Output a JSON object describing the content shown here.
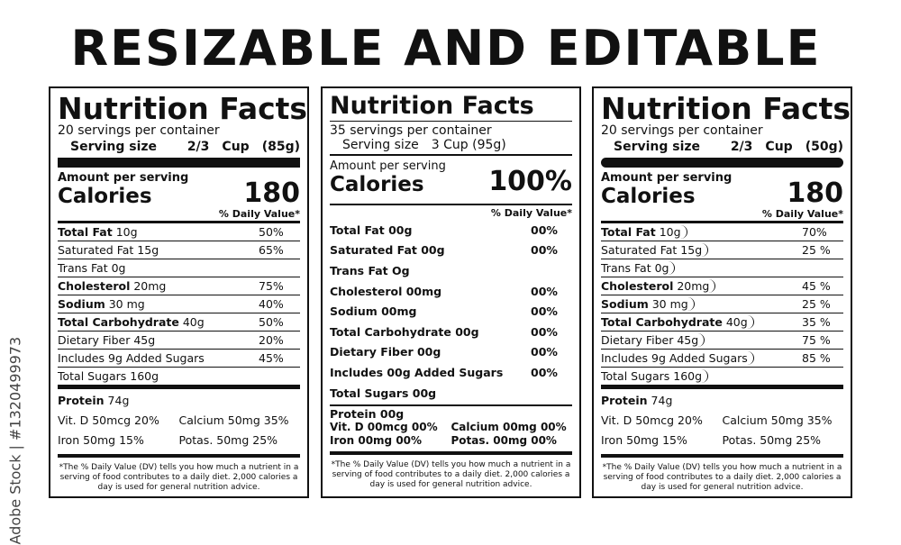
{
  "header": {
    "title": "RESIZABLE AND EDITABLE"
  },
  "watermark": "Adobe Stock | #1320499973",
  "labels": [
    {
      "heading": "Nutrition Facts",
      "servings": "20 servings per container",
      "serving_size": {
        "label": "Serving size",
        "amount": "2/3",
        "unit": "Cup",
        "weight": "(85g)"
      },
      "calories_intro": "Amount per serving",
      "calories_label": "Calories",
      "calories": "180",
      "dv_header": "% Daily Value*",
      "rows": [
        {
          "name": "Total Fat",
          "amount": "10g",
          "dv": "50%",
          "bold": true
        },
        {
          "name": "Saturated Fat 15g",
          "dv": "65%"
        },
        {
          "name": "Trans Fat 0g"
        },
        {
          "name": "Cholesterol",
          "amount": "20mg",
          "dv": "75%",
          "bold": true
        },
        {
          "name": "Sodium",
          "amount": "30 mg",
          "dv": "40%",
          "bold": true
        },
        {
          "name": "Total Carbohydrate",
          "amount": "40g",
          "dv": "50%",
          "bold": true
        },
        {
          "name": "Dietary Fiber 45g",
          "dv": "20%"
        },
        {
          "name": "Includes 9g Added Sugars",
          "dv": "45%"
        },
        {
          "name": "Total Sugars 160g"
        }
      ],
      "protein": {
        "name": "Protein",
        "amount": "74g"
      },
      "vitamins": [
        "Vit. D 50mcg 20%",
        "Calcium 50mg 35%",
        "Iron 50mg  15%",
        "Potas. 50mg 25%"
      ],
      "footnote": "*The % Daily Value (DV) tells you how much a nutrient in a serving of food contributes to a daily diet. 2,000 calories a day is used for general nutrition advice."
    },
    {
      "heading": "Nutrition Facts",
      "servings": "35 servings per container",
      "serving_size": {
        "label": "Serving size",
        "amount": "3 Cup (95g)"
      },
      "calories_intro": "Amount per serving",
      "calories_label": "Calories",
      "calories": "100%",
      "dv_header": "% Daily Value*",
      "rows": [
        {
          "name": "Total Fat 00g",
          "dv": "00%"
        },
        {
          "name": "Saturated Fat 00g",
          "dv": "00%"
        },
        {
          "name": "Trans Fat Og"
        },
        {
          "name": "Cholesterol 00mg",
          "dv": "00%"
        },
        {
          "name": "Sodium 00mg",
          "dv": "00%"
        },
        {
          "name": "Total Carbohydrate 00g",
          "dv": "00%"
        },
        {
          "name": "Dietary Fiber 00g",
          "dv": "00%"
        },
        {
          "name": "Includes 00g Added Sugars",
          "dv": "00%"
        },
        {
          "name": "Total Sugars 00g"
        }
      ],
      "protein": {
        "name": "Protein 00g"
      },
      "vitamins": [
        "Vit. D 00mcg 00%",
        "Calcium 00mg 00%",
        "Iron 00mg 00%",
        "Potas. 00mg 00%"
      ],
      "footnote": "*The % Daily Value (DV) tells you how much a nutrient in a serving of food contributes to a daily diet. 2,000 calories a day is used for general nutrition advice."
    },
    {
      "heading": "Nutrition Facts",
      "servings": "20 servings per container",
      "serving_size": {
        "label": "Serving size",
        "amount": "2/3",
        "unit": "Cup",
        "weight": "(50g)"
      },
      "calories_intro": "Amount per serving",
      "calories_label": "Calories",
      "calories": "180",
      "dv_header": "% Daily Value*",
      "rows": [
        {
          "name": "Total Fat",
          "amount": "10g",
          "dv": "70%",
          "bold": true
        },
        {
          "name": "Saturated Fat 15g",
          "dv": "25 %"
        },
        {
          "name": "Trans Fat 0g"
        },
        {
          "name": "Cholesterol",
          "amount": "20mg",
          "dv": "45 %",
          "bold": true
        },
        {
          "name": "Sodium",
          "amount": "30 mg",
          "dv": "25 %",
          "bold": true
        },
        {
          "name": "Total Carbohydrate",
          "amount": "40g",
          "dv": "35 %",
          "bold": true
        },
        {
          "name": "Dietary Fiber 45g",
          "dv": "75 %"
        },
        {
          "name": "Includes 9g Added Sugars",
          "dv": "85 %"
        },
        {
          "name": "Total Sugars 160g"
        }
      ],
      "protein": {
        "name": "Protein",
        "amount": "74g"
      },
      "vitamins": [
        "Vit. D 50mcg 20%",
        "Calcium 50mg 35%",
        "Iron 50mg  15%",
        "Potas. 50mg 25%"
      ],
      "footnote": "*The % Daily Value (DV) tells you how much a nutrient in a serving of food contributes to a daily diet. 2,000 calories a day is used for general nutrition advice."
    }
  ]
}
